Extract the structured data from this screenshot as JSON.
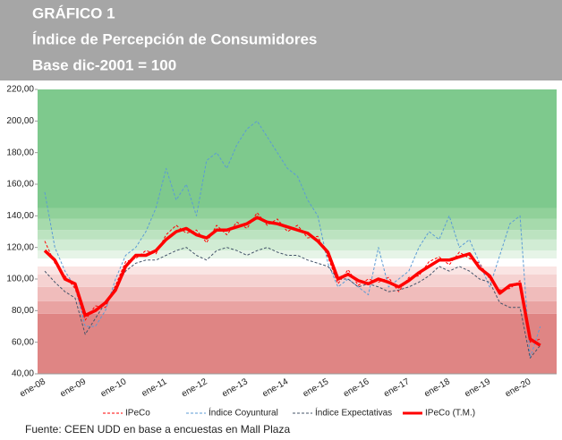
{
  "chart_data": {
    "type": "line",
    "title": [
      "GRÁFICO 1",
      "Índice de Percepción de Consumidores",
      "Base dic-2001 = 100"
    ],
    "source": "Fuente: CEEN UDD en base a encuestas en Mall Plaza",
    "categories": [
      "ene-08",
      null,
      null,
      null,
      "ene-09",
      null,
      null,
      null,
      "ene-10",
      null,
      null,
      null,
      "ene-11",
      null,
      null,
      null,
      "ene-12",
      null,
      null,
      null,
      "ene-13",
      null,
      null,
      null,
      "ene-14",
      null,
      null,
      null,
      "ene-15",
      null,
      null,
      null,
      "ene-16",
      null,
      null,
      null,
      "ene-17",
      null,
      null,
      null,
      "ene-18",
      null,
      null,
      null,
      "ene-19",
      null,
      null,
      null,
      "ene-20",
      null
    ],
    "ylim": [
      40,
      220
    ],
    "yticks": [
      {
        "value": 40,
        "label": "40,00"
      },
      {
        "value": 60,
        "label": "60,00"
      },
      {
        "value": 80,
        "label": "80,00"
      },
      {
        "value": 100,
        "label": "100,00"
      },
      {
        "value": 120,
        "label": "120,00"
      },
      {
        "value": 140,
        "label": "140,00"
      },
      {
        "value": 160,
        "label": "160,00"
      },
      {
        "value": 180,
        "label": "180,00"
      },
      {
        "value": 200,
        "label": "200,00"
      },
      {
        "value": 220,
        "label": "220,00"
      }
    ],
    "bands": [
      {
        "from": 40,
        "to": 78,
        "color": "#df8584"
      },
      {
        "from": 78,
        "to": 86,
        "color": "#e9a3a2"
      },
      {
        "from": 86,
        "to": 95,
        "color": "#f0bcbb"
      },
      {
        "from": 95,
        "to": 103,
        "color": "#f5d2d1"
      },
      {
        "from": 103,
        "to": 108,
        "color": "#fae5e4"
      },
      {
        "from": 108,
        "to": 113,
        "color": "#ffffff"
      },
      {
        "from": 113,
        "to": 118,
        "color": "#e6f4e7"
      },
      {
        "from": 118,
        "to": 125,
        "color": "#d1ecd4"
      },
      {
        "from": 125,
        "to": 131,
        "color": "#bce3c0"
      },
      {
        "from": 131,
        "to": 138,
        "color": "#a6daac"
      },
      {
        "from": 138,
        "to": 145,
        "color": "#91d19a"
      },
      {
        "from": 145,
        "to": 220,
        "color": "#7ec98d"
      }
    ],
    "series": [
      {
        "name": "IPeCo",
        "color": "#ff0000",
        "dashed": true,
        "values": [
          124,
          110,
          102,
          94,
          74,
          83,
          82,
          96,
          111,
          113,
          118,
          116,
          128,
          134,
          129,
          131,
          123,
          134,
          128,
          136,
          132,
          142,
          134,
          138,
          130,
          134,
          126,
          127,
          114,
          97,
          106,
          96,
          100,
          98,
          101,
          92,
          101,
          102,
          111,
          114,
          109,
          117,
          113,
          110,
          100,
          93,
          94,
          99,
          60,
          62
        ]
      },
      {
        "name": "Índice Coyuntural",
        "color": "#5b9bd5",
        "dashed": true,
        "values": [
          155,
          120,
          105,
          95,
          70,
          70,
          80,
          100,
          115,
          120,
          130,
          145,
          170,
          150,
          160,
          140,
          175,
          180,
          170,
          185,
          195,
          200,
          190,
          180,
          170,
          165,
          150,
          140,
          110,
          95,
          100,
          95,
          90,
          120,
          95,
          100,
          105,
          120,
          130,
          125,
          140,
          120,
          125,
          110,
          95,
          115,
          135,
          140,
          50,
          70
        ]
      },
      {
        "name": "Índice Expectativas",
        "color": "#44546a",
        "dashed": true,
        "values": [
          105,
          98,
          92,
          88,
          65,
          75,
          85,
          95,
          105,
          110,
          112,
          112,
          115,
          118,
          120,
          115,
          112,
          118,
          120,
          118,
          115,
          118,
          120,
          117,
          115,
          115,
          112,
          110,
          108,
          100,
          100,
          95,
          97,
          95,
          92,
          93,
          95,
          98,
          102,
          108,
          105,
          108,
          105,
          100,
          98,
          85,
          82,
          82,
          50,
          58
        ]
      },
      {
        "name": "IPeCo (T.M.)",
        "color": "#ff0000",
        "dashed": false,
        "values": [
          118,
          112,
          100,
          97,
          77,
          80,
          85,
          93,
          108,
          115,
          115,
          118,
          125,
          130,
          132,
          128,
          126,
          131,
          131,
          133,
          135,
          139,
          136,
          135,
          133,
          131,
          129,
          124,
          117,
          100,
          103,
          99,
          97,
          100,
          98,
          95,
          99,
          104,
          108,
          112,
          112,
          114,
          116,
          107,
          102,
          91,
          96,
          97,
          62,
          58
        ]
      }
    ]
  }
}
